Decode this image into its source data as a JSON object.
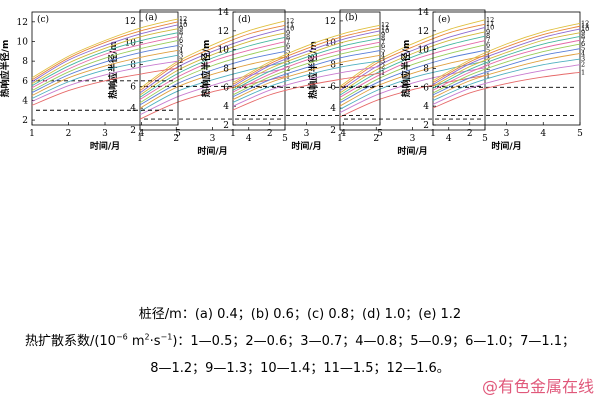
{
  "caption": {
    "line1": "桩径/m：(a) 0.4；(b) 0.6；(c) 0.8；(d) 1.0；(e) 1.2",
    "line2_pre": "热扩散系数/(10",
    "line2_sup1": "−6",
    "line2_mid": " m",
    "line2_sup2": "2",
    "line2_mid2": "·s",
    "line2_sup3": "−1",
    "line2_post": ")：1—0.5；2—0.6；3—0.7；4—0.8；5—0.9；6—1.0；7—1.1；",
    "line3": "8—1.2；9—1.3；10—1.4；11—1.5；12—1.6。"
  },
  "watermark": "@有色金属在线",
  "series_colors": [
    "#e66a6a",
    "#c87cd0",
    "#4fb0c0",
    "#e0a040",
    "#5a7fd8",
    "#9acd5a",
    "#e46aa8",
    "#45b7a0",
    "#d0b83a",
    "#8e6ad0",
    "#e8863a",
    "#e0c040"
  ],
  "chart_data": [
    {
      "panel_label": "(a)",
      "type": "line",
      "xlabel": "时间/月",
      "ylabel": "热响应半径/m",
      "xticks": [
        1,
        2,
        3,
        4,
        5
      ],
      "yticks": [
        2,
        4,
        6,
        8,
        10,
        12
      ],
      "xlim": [
        1,
        5
      ],
      "ylim": [
        2,
        13
      ],
      "x": [
        1,
        2,
        3,
        4,
        5
      ],
      "series": [
        {
          "name": "1",
          "values": [
            3.0,
            4.5,
            5.5,
            6.2,
            6.9
          ]
        },
        {
          "name": "2",
          "values": [
            3.4,
            5.0,
            6.1,
            7.0,
            7.6
          ]
        },
        {
          "name": "3",
          "values": [
            3.7,
            5.5,
            6.6,
            7.5,
            8.2
          ]
        },
        {
          "name": "4",
          "values": [
            4.0,
            5.9,
            7.1,
            8.0,
            8.7
          ]
        },
        {
          "name": "5",
          "values": [
            4.3,
            6.2,
            7.5,
            8.5,
            9.2
          ]
        },
        {
          "name": "6",
          "values": [
            4.5,
            6.5,
            7.9,
            8.9,
            9.7
          ]
        },
        {
          "name": "7",
          "values": [
            4.8,
            6.8,
            8.3,
            9.3,
            10.1
          ]
        },
        {
          "name": "8",
          "values": [
            5.0,
            7.1,
            8.6,
            9.7,
            10.5
          ]
        },
        {
          "name": "9",
          "values": [
            5.2,
            7.4,
            8.9,
            10.1,
            10.9
          ]
        },
        {
          "name": "10",
          "values": [
            5.4,
            7.7,
            9.2,
            10.4,
            11.3
          ]
        },
        {
          "name": "11",
          "values": [
            5.6,
            8.0,
            9.5,
            10.8,
            11.6
          ]
        },
        {
          "name": "12",
          "values": [
            5.8,
            8.2,
            9.8,
            11.1,
            12.0
          ]
        }
      ],
      "hlines": [
        6,
        3
      ]
    },
    {
      "panel_label": "(b)",
      "type": "line",
      "xlabel": "时间/月",
      "ylabel": "热响应半径/m",
      "xticks": [
        1,
        2,
        3,
        4,
        5
      ],
      "yticks": [
        2,
        4,
        6,
        8,
        10,
        12
      ],
      "xlim": [
        1,
        5
      ],
      "ylim": [
        2,
        13
      ],
      "x": [
        1,
        2,
        3,
        4,
        5
      ],
      "series": [
        {
          "name": "1",
          "values": [
            3.2,
            4.7,
            5.7,
            6.4,
            7.0
          ]
        },
        {
          "name": "2",
          "values": [
            3.6,
            5.2,
            6.3,
            7.1,
            7.7
          ]
        },
        {
          "name": "3",
          "values": [
            3.9,
            5.6,
            6.8,
            7.6,
            8.3
          ]
        },
        {
          "name": "4",
          "values": [
            4.2,
            6.0,
            7.2,
            8.1,
            8.8
          ]
        },
        {
          "name": "5",
          "values": [
            4.5,
            6.3,
            7.6,
            8.6,
            9.3
          ]
        },
        {
          "name": "6",
          "values": [
            4.7,
            6.6,
            8.0,
            9.0,
            9.8
          ]
        },
        {
          "name": "7",
          "values": [
            5.0,
            6.9,
            8.4,
            9.4,
            10.2
          ]
        },
        {
          "name": "8",
          "values": [
            5.2,
            7.2,
            8.7,
            9.8,
            10.6
          ]
        },
        {
          "name": "9",
          "values": [
            5.4,
            7.5,
            9.0,
            10.2,
            11.0
          ]
        },
        {
          "name": "10",
          "values": [
            5.6,
            7.8,
            9.3,
            10.5,
            11.4
          ]
        },
        {
          "name": "11",
          "values": [
            5.8,
            8.1,
            9.6,
            10.9,
            11.7
          ]
        },
        {
          "name": "12",
          "values": [
            6.0,
            8.3,
            9.9,
            11.2,
            12.1
          ]
        }
      ],
      "hlines": [
        6,
        3
      ]
    },
    {
      "panel_label": "(c)",
      "type": "line",
      "xlabel": "时间/月",
      "ylabel": "热响应半径/m",
      "xticks": [
        1,
        2,
        3,
        4,
        5
      ],
      "yticks": [
        2,
        4,
        6,
        8,
        10,
        12
      ],
      "xlim": [
        1,
        5
      ],
      "ylim": [
        1.5,
        13
      ],
      "x": [
        1,
        2,
        3,
        4,
        5
      ],
      "series": [
        {
          "name": "1",
          "values": [
            3.5,
            5.0,
            6.0,
            6.7,
            7.3
          ]
        },
        {
          "name": "2",
          "values": [
            3.9,
            5.5,
            6.6,
            7.4,
            8.0
          ]
        },
        {
          "name": "3",
          "values": [
            4.2,
            5.9,
            7.1,
            7.9,
            8.6
          ]
        },
        {
          "name": "4",
          "values": [
            4.5,
            6.3,
            7.5,
            8.4,
            9.1
          ]
        },
        {
          "name": "5",
          "values": [
            4.8,
            6.6,
            7.9,
            8.9,
            9.6
          ]
        },
        {
          "name": "6",
          "values": [
            5.0,
            6.9,
            8.3,
            9.3,
            10.1
          ]
        },
        {
          "name": "7",
          "values": [
            5.3,
            7.2,
            8.7,
            9.7,
            10.5
          ]
        },
        {
          "name": "8",
          "values": [
            5.5,
            7.5,
            9.0,
            10.1,
            10.9
          ]
        },
        {
          "name": "9",
          "values": [
            5.7,
            7.8,
            9.3,
            10.5,
            11.3
          ]
        },
        {
          "name": "10",
          "values": [
            5.9,
            8.1,
            9.6,
            10.8,
            11.7
          ]
        },
        {
          "name": "11",
          "values": [
            6.1,
            8.3,
            9.9,
            11.1,
            12.0
          ]
        },
        {
          "name": "12",
          "values": [
            6.3,
            8.5,
            10.1,
            11.4,
            12.3
          ]
        }
      ],
      "hlines": [
        6,
        3
      ]
    },
    {
      "panel_label": "(d)",
      "type": "line",
      "xlabel": "时间/月",
      "ylabel": "热响应半径/m",
      "xticks": [
        1,
        2,
        3,
        4,
        5
      ],
      "yticks": [
        2,
        4,
        6,
        8,
        10,
        12,
        14
      ],
      "xlim": [
        1,
        5
      ],
      "ylim": [
        2,
        14
      ],
      "x": [
        1,
        2,
        3,
        4,
        5
      ],
      "series": [
        {
          "name": "1",
          "values": [
            3.6,
            5.2,
            6.2,
            6.9,
            7.5
          ]
        },
        {
          "name": "2",
          "values": [
            4.0,
            5.7,
            6.8,
            7.6,
            8.2
          ]
        },
        {
          "name": "3",
          "values": [
            4.4,
            6.1,
            7.3,
            8.2,
            8.8
          ]
        },
        {
          "name": "4",
          "values": [
            4.7,
            6.5,
            7.7,
            8.7,
            9.4
          ]
        },
        {
          "name": "5",
          "values": [
            5.0,
            6.8,
            8.1,
            9.2,
            9.9
          ]
        },
        {
          "name": "6",
          "values": [
            5.2,
            7.1,
            8.5,
            9.6,
            10.4
          ]
        },
        {
          "name": "7",
          "values": [
            5.5,
            7.4,
            8.9,
            10.0,
            10.8
          ]
        },
        {
          "name": "8",
          "values": [
            5.7,
            7.7,
            9.2,
            10.4,
            11.2
          ]
        },
        {
          "name": "9",
          "values": [
            5.9,
            8.0,
            9.5,
            10.8,
            11.6
          ]
        },
        {
          "name": "10",
          "values": [
            6.1,
            8.3,
            9.8,
            11.1,
            12.0
          ]
        },
        {
          "name": "11",
          "values": [
            6.3,
            8.5,
            10.1,
            11.4,
            12.3
          ]
        },
        {
          "name": "12",
          "values": [
            6.5,
            8.7,
            10.4,
            11.7,
            12.6
          ]
        }
      ],
      "hlines": [
        6,
        3
      ]
    },
    {
      "panel_label": "(e)",
      "type": "line",
      "xlabel": "时间/月",
      "ylabel": "热响应半径/m",
      "xticks": [
        1,
        2,
        3,
        4,
        5
      ],
      "yticks": [
        2,
        4,
        6,
        8,
        10,
        12,
        14
      ],
      "xlim": [
        1,
        5
      ],
      "ylim": [
        2,
        14
      ],
      "x": [
        1,
        2,
        3,
        4,
        5
      ],
      "series": [
        {
          "name": "1",
          "values": [
            3.8,
            5.4,
            6.4,
            7.1,
            7.6
          ]
        },
        {
          "name": "2",
          "values": [
            4.2,
            5.9,
            7.0,
            7.8,
            8.4
          ]
        },
        {
          "name": "3",
          "values": [
            4.6,
            6.3,
            7.5,
            8.4,
            9.0
          ]
        },
        {
          "name": "4",
          "values": [
            4.9,
            6.7,
            7.9,
            8.9,
            9.6
          ]
        },
        {
          "name": "5",
          "values": [
            5.2,
            7.0,
            8.3,
            9.4,
            10.1
          ]
        },
        {
          "name": "6",
          "values": [
            5.4,
            7.3,
            8.7,
            9.8,
            10.6
          ]
        },
        {
          "name": "7",
          "values": [
            5.7,
            7.6,
            9.1,
            10.2,
            11.0
          ]
        },
        {
          "name": "8",
          "values": [
            5.9,
            7.9,
            9.4,
            10.6,
            11.4
          ]
        },
        {
          "name": "9",
          "values": [
            6.1,
            8.2,
            9.7,
            11.0,
            11.8
          ]
        },
        {
          "name": "10",
          "values": [
            6.3,
            8.5,
            10.0,
            11.3,
            12.2
          ]
        },
        {
          "name": "11",
          "values": [
            6.5,
            8.7,
            10.3,
            11.6,
            12.5
          ]
        },
        {
          "name": "12",
          "values": [
            6.7,
            8.9,
            10.6,
            11.9,
            12.8
          ]
        }
      ],
      "hlines": [
        6,
        3
      ]
    }
  ]
}
